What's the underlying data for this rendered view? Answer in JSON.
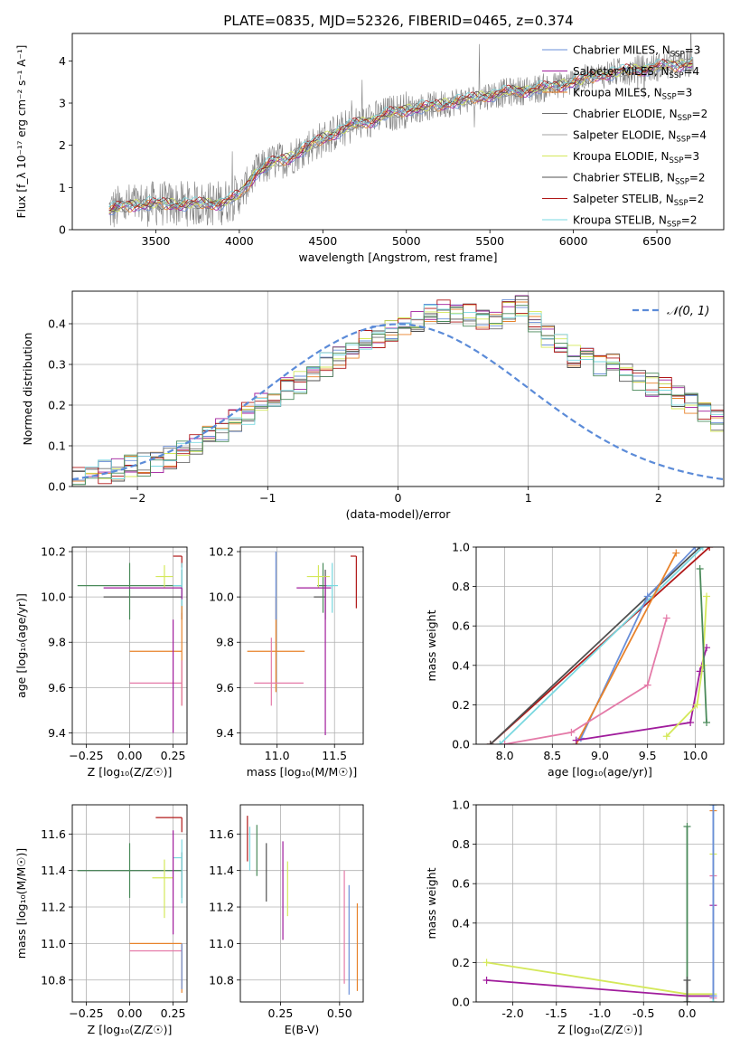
{
  "figure_title": "PLATE=0835, MJD=52326, FIBERID=0465, z=0.374",
  "colors": {
    "chabrier_miles": "#6a8fd8",
    "salpeter_miles": "#a01c9c",
    "kroupa_miles": "#e8822a",
    "chabrier_elodie": "#707070",
    "salpeter_elodie": "#a0a0a0",
    "kroupa_elodie": "#d4e85a",
    "chabrier_stelib": "#505050",
    "salpeter_stelib": "#b01818",
    "kroupa_stelib": "#7ad8e0",
    "pink": "#e47aa8",
    "green": "#4a8a5a",
    "normal_curve": "#5b8bd8"
  },
  "chart_data": [
    {
      "id": "spectrum",
      "type": "line",
      "xlabel": "wavelength [Angstrom, rest frame]",
      "ylabel": "Flux [f_λ 10⁻¹⁷ erg cm⁻² s⁻¹ A⁻¹]",
      "xlim": [
        3000,
        6900
      ],
      "ylim": [
        0,
        4.65
      ],
      "xticks": [
        3500,
        4000,
        4500,
        5000,
        5500,
        6000,
        6500
      ],
      "yticks": [
        0,
        1,
        2,
        3,
        4
      ],
      "legend_position": "upper right",
      "x": [
        3220,
        3300,
        3400,
        3500,
        3600,
        3700,
        3800,
        3900,
        4000,
        4100,
        4200,
        4300,
        4400,
        4500,
        4600,
        4700,
        4800,
        4900,
        5000,
        5100,
        5200,
        5300,
        5400,
        5500,
        5600,
        5700,
        5800,
        5900,
        6000,
        6100,
        6200,
        6300,
        6400,
        6500,
        6600,
        6720
      ],
      "model": [
        0.45,
        0.55,
        0.6,
        0.62,
        0.6,
        0.62,
        0.6,
        0.65,
        0.8,
        1.35,
        1.6,
        1.7,
        1.95,
        2.15,
        2.35,
        2.5,
        2.6,
        2.75,
        2.85,
        2.9,
        2.95,
        3.05,
        3.1,
        3.2,
        3.25,
        3.3,
        3.35,
        3.4,
        3.5,
        3.6,
        3.7,
        3.75,
        3.8,
        3.85,
        3.9,
        3.95
      ],
      "series": [
        {
          "name": "Chabrier MILES, N_SSP=3",
          "color_key": "chabrier_miles"
        },
        {
          "name": "Salpeter MILES, N_SSP=4",
          "color_key": "salpeter_miles"
        },
        {
          "name": "Kroupa MILES, N_SSP=3",
          "color_key": "kroupa_miles"
        },
        {
          "name": "Chabrier ELODIE, N_SSP=2",
          "color_key": "chabrier_elodie"
        },
        {
          "name": "Salpeter ELODIE, N_SSP=4",
          "color_key": "salpeter_elodie"
        },
        {
          "name": "Kroupa ELODIE, N_SSP=3",
          "color_key": "kroupa_elodie"
        },
        {
          "name": "Chabrier STELIB, N_SSP=2",
          "color_key": "chabrier_stelib"
        },
        {
          "name": "Salpeter STELIB, N_SSP=2",
          "color_key": "salpeter_stelib"
        },
        {
          "name": "Kroupa STELIB, N_SSP=2",
          "color_key": "kroupa_stelib"
        }
      ]
    },
    {
      "id": "residual_hist",
      "type": "area",
      "xlabel": "(data-model)/error",
      "ylabel": "Normed distribution",
      "xlim": [
        -2.5,
        2.5
      ],
      "ylim": [
        0,
        0.48
      ],
      "xticks": [
        -2,
        -1,
        0,
        1,
        2
      ],
      "yticks": [
        0.0,
        0.1,
        0.2,
        0.3,
        0.4
      ],
      "legend": [
        "𝒩(0, 1)"
      ],
      "legend_position": "upper right",
      "bin_start": -2.5,
      "bin_width": 0.1,
      "values": [
        0.02,
        0.025,
        0.035,
        0.04,
        0.05,
        0.055,
        0.06,
        0.07,
        0.085,
        0.1,
        0.12,
        0.14,
        0.16,
        0.18,
        0.2,
        0.22,
        0.24,
        0.255,
        0.28,
        0.3,
        0.32,
        0.34,
        0.355,
        0.37,
        0.38,
        0.39,
        0.4,
        0.42,
        0.43,
        0.425,
        0.42,
        0.41,
        0.415,
        0.43,
        0.44,
        0.41,
        0.37,
        0.35,
        0.32,
        0.31,
        0.3,
        0.3,
        0.28,
        0.26,
        0.25,
        0.24,
        0.22,
        0.2,
        0.18,
        0.16,
        0.14,
        0.12,
        0.1,
        0.08,
        0.07,
        0.06,
        0.05,
        0.04,
        0.035,
        0.03
      ]
    },
    {
      "id": "age_vs_Z",
      "type": "scatter",
      "xlabel": "Z [log₁₀(Z/Z☉)]",
      "ylabel": "age  [log₁₀(age/yr)]",
      "xlim": [
        -0.33,
        0.33
      ],
      "ylim": [
        9.35,
        10.22
      ],
      "xticks": [
        -0.25,
        0.0,
        0.25
      ],
      "yticks": [
        9.4,
        9.6,
        9.8,
        10.0,
        10.2
      ],
      "points": [
        {
          "x": 0.3,
          "y": 10.0,
          "xerr": [
            0.45,
            0.0
          ],
          "yerr": [
            0.1,
            0.12
          ],
          "color_key": "chabrier_stelib"
        },
        {
          "x": 0.0,
          "y": 10.05,
          "xerr": [
            0.3,
            0.3
          ],
          "yerr": [
            0.15,
            0.1
          ],
          "color_key": "green"
        },
        {
          "x": 0.3,
          "y": 10.18,
          "xerr": [
            0.05,
            0.0
          ],
          "yerr": [
            0.05,
            0.0
          ],
          "color_key": "salpeter_stelib"
        },
        {
          "x": 0.2,
          "y": 10.09,
          "xerr": [
            0.05,
            0.05
          ],
          "yerr": [
            0.05,
            0.05
          ],
          "color_key": "kroupa_elodie"
        },
        {
          "x": 0.3,
          "y": 10.05,
          "xerr": [
            0.05,
            0.0
          ],
          "yerr": [
            0.12,
            0.1
          ],
          "color_key": "kroupa_stelib"
        },
        {
          "x": 0.3,
          "y": 10.04,
          "xerr": [
            0.45,
            0.0
          ],
          "yerr": [
            0.05,
            0.0
          ],
          "color_key": "salpeter_miles"
        },
        {
          "x": 0.3,
          "y": 9.76,
          "xerr": [
            0.3,
            0.0
          ],
          "yerr": [
            0.24,
            0.2
          ],
          "color_key": "kroupa_miles"
        },
        {
          "x": 0.3,
          "y": 9.62,
          "xerr": [
            0.3,
            0.0
          ],
          "yerr": [
            0.1,
            0.1
          ],
          "color_key": "pink"
        },
        {
          "x": 0.25,
          "y": 9.8,
          "xerr": [
            0.0,
            0.0
          ],
          "yerr": [
            0.4,
            0.1
          ],
          "color_key": "salpeter_miles"
        }
      ]
    },
    {
      "id": "age_vs_mass",
      "type": "scatter",
      "xlabel": "mass [log₁₀(M/M☉)]",
      "ylabel": "",
      "xlim": [
        10.68,
        11.75
      ],
      "ylim": [
        9.35,
        10.22
      ],
      "xticks": [
        11.0,
        11.5
      ],
      "yticks": [
        9.4,
        9.6,
        9.8,
        10.0,
        10.2
      ],
      "points": [
        {
          "x": 11.42,
          "y": 10.0,
          "xerr": [
            0.1,
            0.0
          ],
          "yerr": [
            0.1,
            0.12
          ],
          "color_key": "chabrier_stelib"
        },
        {
          "x": 11.4,
          "y": 10.05,
          "xerr": [
            0.05,
            0.08
          ],
          "yerr": [
            0.12,
            0.1
          ],
          "color_key": "green"
        },
        {
          "x": 11.69,
          "y": 10.18,
          "xerr": [
            0.05,
            0.0
          ],
          "yerr": [
            0.23,
            0.0
          ],
          "color_key": "salpeter_stelib"
        },
        {
          "x": 11.36,
          "y": 10.09,
          "xerr": [
            0.1,
            0.1
          ],
          "yerr": [
            0.05,
            0.05
          ],
          "color_key": "kroupa_elodie"
        },
        {
          "x": 11.48,
          "y": 10.05,
          "xerr": [
            0.05,
            0.05
          ],
          "yerr": [
            0.12,
            0.1
          ],
          "color_key": "kroupa_stelib"
        },
        {
          "x": 11.42,
          "y": 10.04,
          "xerr": [
            0.25,
            0.05
          ],
          "yerr": [
            0.65,
            0.05
          ],
          "color_key": "salpeter_miles"
        },
        {
          "x": 10.99,
          "y": 9.76,
          "xerr": [
            0.25,
            0.25
          ],
          "yerr": [
            0.18,
            0.24
          ],
          "color_key": "kroupa_miles"
        },
        {
          "x": 10.95,
          "y": 9.62,
          "xerr": [
            0.15,
            0.28
          ],
          "yerr": [
            0.1,
            0.2
          ],
          "color_key": "pink"
        },
        {
          "x": 10.99,
          "y": 10.0,
          "xerr": [
            0.0,
            0.0
          ],
          "yerr": [
            0.1,
            0.2
          ],
          "color_key": "chabrier_miles"
        }
      ]
    },
    {
      "id": "massweight_vs_age",
      "type": "line",
      "xlabel": "age  [log₁₀(age/yr)]",
      "ylabel": "mass weight",
      "xlim": [
        7.7,
        10.3
      ],
      "ylim": [
        0.0,
        1.0
      ],
      "xticks": [
        8.0,
        8.5,
        9.0,
        9.5,
        10.0
      ],
      "yticks": [
        0.0,
        0.2,
        0.4,
        0.6,
        0.8,
        1.0
      ],
      "series": [
        {
          "color_key": "salpeter_stelib",
          "x": [
            7.85,
            10.15
          ],
          "y": [
            0.0,
            1.0
          ]
        },
        {
          "color_key": "chabrier_stelib",
          "x": [
            7.85,
            10.05
          ],
          "y": [
            0.0,
            1.0
          ]
        },
        {
          "color_key": "kroupa_stelib",
          "x": [
            7.95,
            10.08
          ],
          "y": [
            0.0,
            1.0
          ]
        },
        {
          "color_key": "chabrier_miles",
          "x": [
            8.8,
            9.5,
            10.0
          ],
          "y": [
            0.03,
            0.75,
            1.0
          ]
        },
        {
          "color_key": "kroupa_miles",
          "x": [
            8.75,
            9.8
          ],
          "y": [
            0.0,
            0.97
          ]
        },
        {
          "color_key": "pink",
          "x": [
            8.0,
            8.7,
            9.5,
            9.7
          ],
          "y": [
            0.0,
            0.06,
            0.3,
            0.64
          ]
        },
        {
          "color_key": "salpeter_miles",
          "x": [
            8.75,
            9.95,
            10.05,
            10.12
          ],
          "y": [
            0.02,
            0.11,
            0.37,
            0.49
          ]
        },
        {
          "color_key": "kroupa_elodie",
          "x": [
            9.7,
            10.02,
            10.08,
            10.12
          ],
          "y": [
            0.04,
            0.2,
            0.4,
            0.75
          ]
        },
        {
          "color_key": "green",
          "x": [
            10.05,
            10.12
          ],
          "y": [
            0.89,
            0.11
          ]
        }
      ]
    },
    {
      "id": "mass_vs_Z",
      "type": "scatter",
      "xlabel": "Z [log₁₀(Z/Z☉)]",
      "ylabel": "mass [log₁₀(M/M☉)]",
      "xlim": [
        -0.33,
        0.33
      ],
      "ylim": [
        10.68,
        11.76
      ],
      "xticks": [
        -0.25,
        0.0,
        0.25
      ],
      "yticks": [
        10.8,
        11.0,
        11.2,
        11.4,
        11.6
      ],
      "points": [
        {
          "x": 0.3,
          "y": 11.4,
          "xerr": [
            0.6,
            0.0
          ],
          "yerr": [
            0.15,
            0.1
          ],
          "color_key": "chabrier_stelib"
        },
        {
          "x": 0.0,
          "y": 11.4,
          "xerr": [
            0.3,
            0.3
          ],
          "yerr": [
            0.15,
            0.15
          ],
          "color_key": "green"
        },
        {
          "x": 0.3,
          "y": 11.69,
          "xerr": [
            0.15,
            0.0
          ],
          "yerr": [
            0.08,
            0.0
          ],
          "color_key": "salpeter_stelib"
        },
        {
          "x": 0.2,
          "y": 11.36,
          "xerr": [
            0.07,
            0.05
          ],
          "yerr": [
            0.22,
            0.1
          ],
          "color_key": "kroupa_elodie"
        },
        {
          "x": 0.3,
          "y": 11.47,
          "xerr": [
            0.05,
            0.0
          ],
          "yerr": [
            0.25,
            0.1
          ],
          "color_key": "kroupa_stelib"
        },
        {
          "x": 0.3,
          "y": 11.0,
          "xerr": [
            0.3,
            0.0
          ],
          "yerr": [
            0.27,
            0.0
          ],
          "color_key": "kroupa_miles"
        },
        {
          "x": 0.3,
          "y": 10.96,
          "xerr": [
            0.3,
            0.0
          ],
          "yerr": [
            0.0,
            0.0
          ],
          "color_key": "pink"
        },
        {
          "x": 0.25,
          "y": 11.4,
          "xerr": [
            0.0,
            0.0
          ],
          "yerr": [
            0.35,
            0.22
          ],
          "color_key": "salpeter_miles"
        },
        {
          "x": 0.3,
          "y": 11.0,
          "xerr": [
            0.0,
            0.0
          ],
          "yerr": [
            0.25,
            0.0
          ],
          "color_key": "chabrier_miles"
        }
      ]
    },
    {
      "id": "mass_vs_ebv",
      "type": "scatter",
      "xlabel": "E(B-V)",
      "ylabel": "",
      "xlim": [
        0.08,
        0.6
      ],
      "ylim": [
        10.68,
        11.76
      ],
      "xticks": [
        0.25,
        0.5
      ],
      "yticks": [
        10.8,
        11.0,
        11.2,
        11.4,
        11.6
      ],
      "points": [
        {
          "x": 0.11,
          "y": 11.55,
          "yerr": [
            0.1,
            0.15
          ],
          "color_key": "salpeter_stelib"
        },
        {
          "x": 0.12,
          "y": 11.47,
          "yerr": [
            0.07,
            0.17
          ],
          "color_key": "kroupa_stelib"
        },
        {
          "x": 0.15,
          "y": 11.47,
          "yerr": [
            0.1,
            0.18
          ],
          "color_key": "green"
        },
        {
          "x": 0.19,
          "y": 11.4,
          "yerr": [
            0.17,
            0.15
          ],
          "color_key": "chabrier_stelib"
        },
        {
          "x": 0.26,
          "y": 11.28,
          "yerr": [
            0.26,
            0.28
          ],
          "color_key": "salpeter_miles"
        },
        {
          "x": 0.28,
          "y": 11.3,
          "yerr": [
            0.15,
            0.15
          ],
          "color_key": "kroupa_elodie"
        },
        {
          "x": 0.52,
          "y": 11.1,
          "yerr": [
            0.32,
            0.3
          ],
          "color_key": "pink"
        },
        {
          "x": 0.54,
          "y": 11.02,
          "yerr": [
            0.3,
            0.3
          ],
          "color_key": "chabrier_miles"
        },
        {
          "x": 0.575,
          "y": 10.98,
          "yerr": [
            0.24,
            0.24
          ],
          "color_key": "kroupa_miles"
        }
      ]
    },
    {
      "id": "massweight_vs_Z",
      "type": "line",
      "xlabel": "Z [log₁₀(Z/Z☉)]",
      "ylabel": "mass weight",
      "xlim": [
        -2.42,
        0.42
      ],
      "ylim": [
        0.0,
        1.0
      ],
      "xticks": [
        -2.0,
        -1.5,
        -1.0,
        -0.5,
        0.0
      ],
      "yticks": [
        0.0,
        0.2,
        0.4,
        0.6,
        0.8,
        1.0
      ],
      "series": [
        {
          "color_key": "kroupa_elodie",
          "x": [
            -2.3,
            0.0,
            0.3,
            0.3
          ],
          "y": [
            0.2,
            0.04,
            0.04,
            0.75
          ]
        },
        {
          "color_key": "salpeter_miles",
          "x": [
            -2.3,
            0.0,
            0.3,
            0.3
          ],
          "y": [
            0.11,
            0.03,
            0.03,
            0.49
          ]
        },
        {
          "color_key": "green",
          "x": [
            0.0,
            0.0
          ],
          "y": [
            0.0,
            0.89
          ]
        },
        {
          "color_key": "chabrier_stelib",
          "x": [
            0.0,
            0.0
          ],
          "y": [
            0.0,
            0.11
          ]
        },
        {
          "color_key": "kroupa_miles",
          "x": [
            0.3,
            0.3
          ],
          "y": [
            0.0,
            0.97
          ]
        },
        {
          "color_key": "pink",
          "x": [
            0.3,
            0.3
          ],
          "y": [
            0.02,
            0.64
          ]
        },
        {
          "color_key": "kroupa_stelib",
          "x": [
            0.3,
            0.3
          ],
          "y": [
            0.0,
            1.0
          ]
        },
        {
          "color_key": "chabrier_miles",
          "x": [
            0.3,
            0.3
          ],
          "y": [
            0.03,
            1.0
          ]
        }
      ]
    }
  ]
}
